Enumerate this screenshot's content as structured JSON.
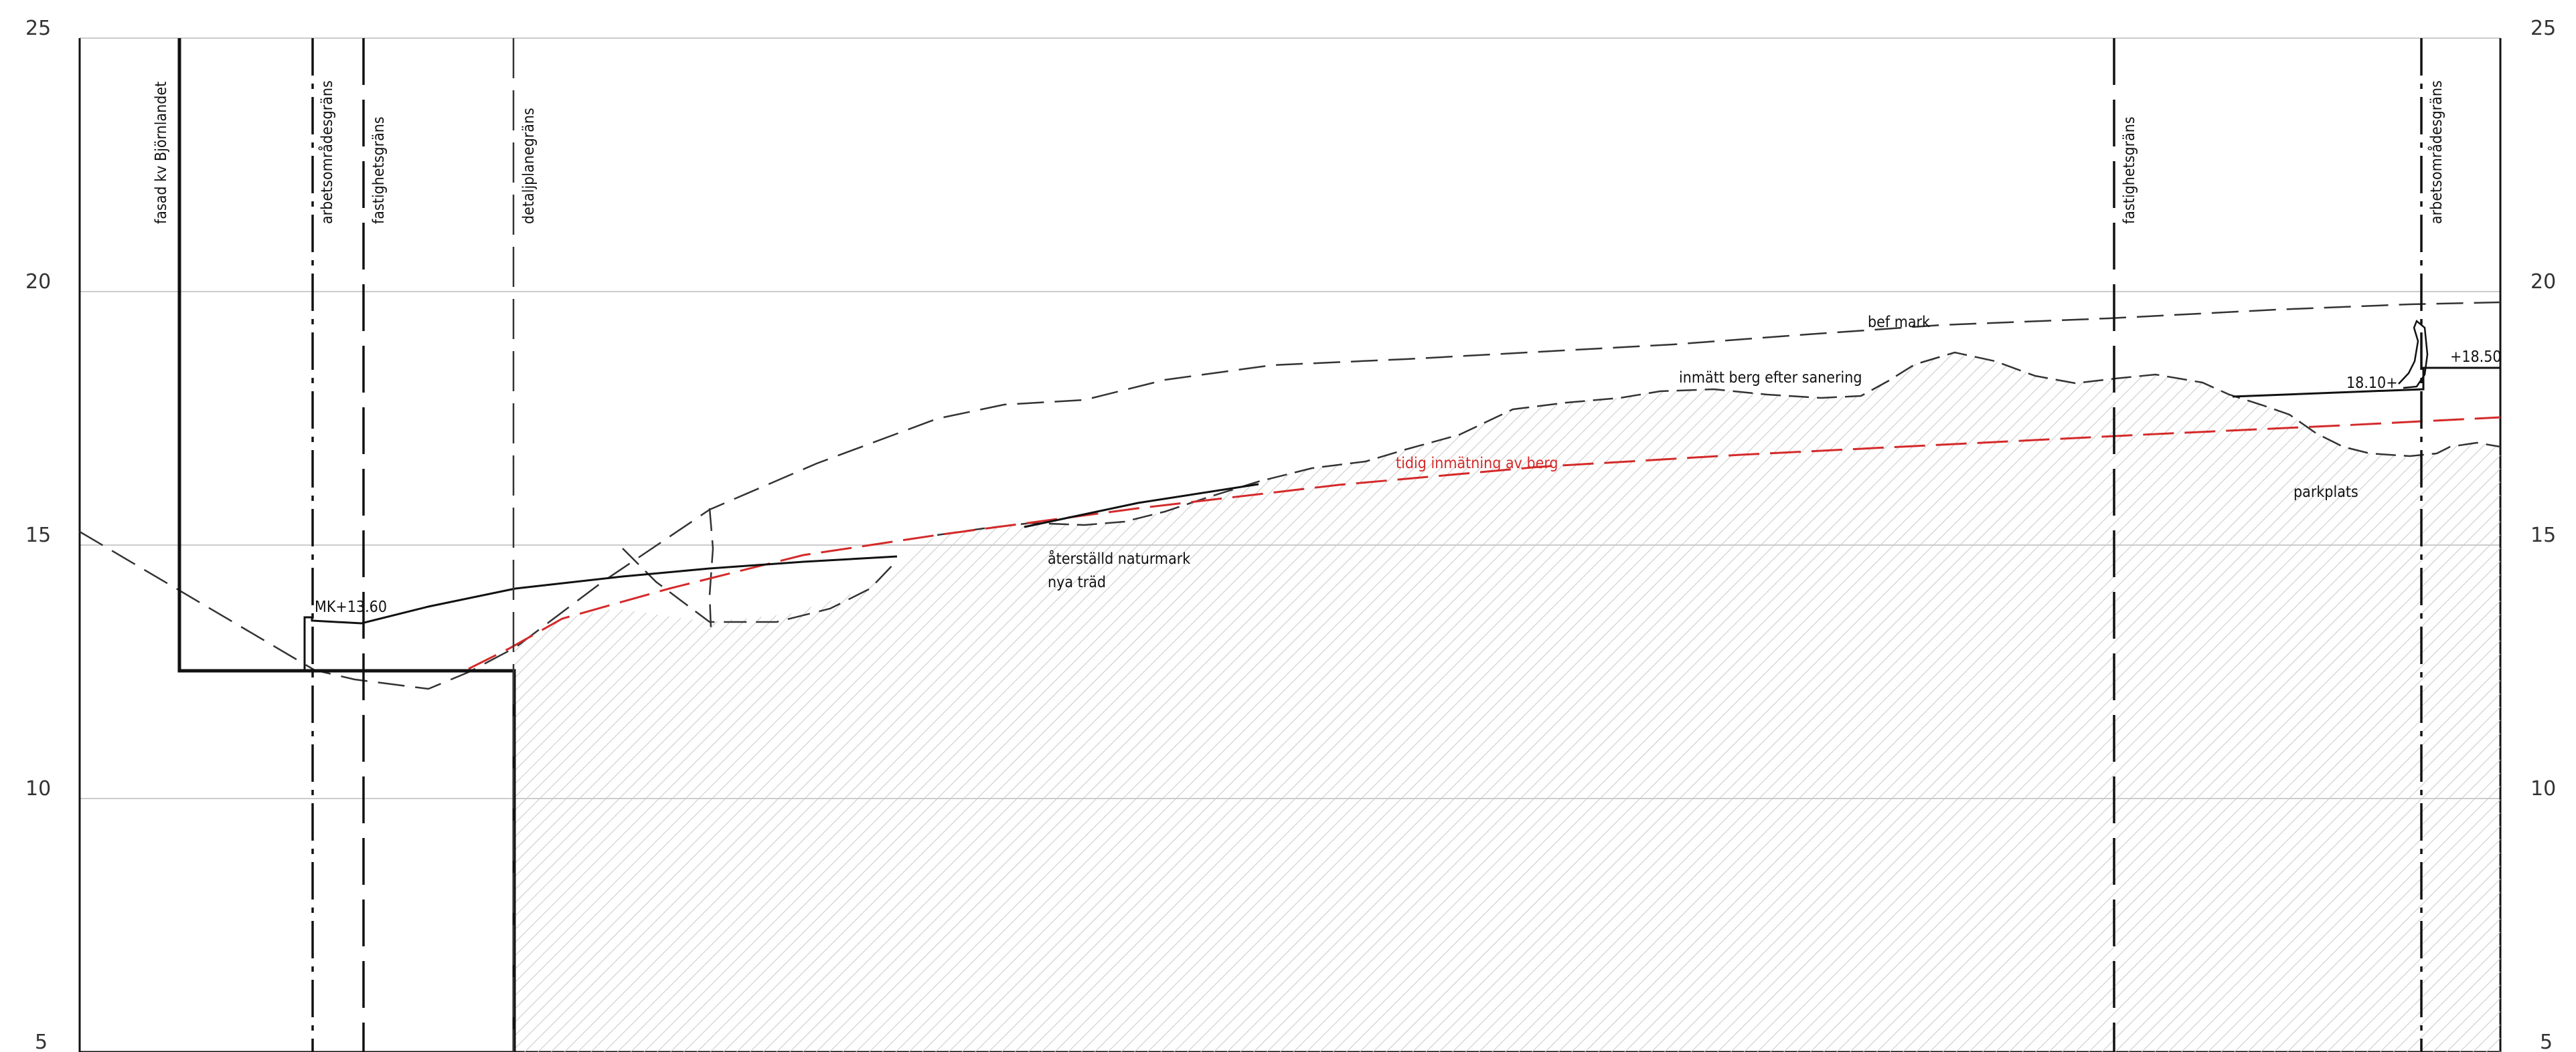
{
  "y_axis": {
    "left_ticks": [
      "25",
      "20",
      "15",
      "10",
      "5"
    ],
    "right_ticks": [
      "25",
      "20",
      "15",
      "10",
      "5"
    ],
    "range": [
      5,
      25
    ]
  },
  "boundaries": {
    "facade": "fasad kv Björnlandet",
    "work_area_left": "arbetsområdesgräns",
    "property_left": "fastighetsgräns",
    "detail_plan": "detaljplanegräns",
    "property_right": "fastighetsgräns",
    "work_area_right": "arbetsområdesgräns"
  },
  "annotations": {
    "existing_ground": "bef mark",
    "measured_rock": "inmätt berg efter sanering",
    "earlier_rock": "tidig inmätning av berg",
    "restored_1": "återställd naturmark",
    "restored_2": "nya träd",
    "parking": "parkplats",
    "mk_level": "MK+13.60",
    "level_left": "18.10+",
    "level_right": "+18.50"
  },
  "colors": {
    "line": "#111111",
    "grid": "#cccccc",
    "red_line": "#d42a2a",
    "hatch": "#c8c8c8"
  }
}
